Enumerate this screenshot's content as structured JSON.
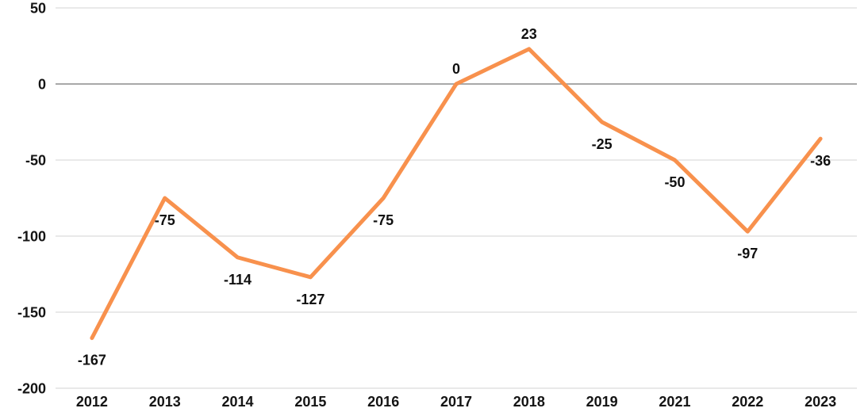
{
  "chart_data": {
    "type": "line",
    "title": "",
    "categories": [
      "2012",
      "2013",
      "2014",
      "2015",
      "2016",
      "2017",
      "2018",
      "2019",
      "2021",
      "2022",
      "2023"
    ],
    "values": [
      -167,
      -75,
      -114,
      -127,
      -75,
      0,
      23,
      -25,
      -50,
      -97,
      -36
    ],
    "point_labels": [
      "-167",
      "-75",
      "-114",
      "-127",
      "-75",
      "0",
      "23",
      "-25",
      "-50",
      "-97",
      "-36"
    ],
    "xlabel": "",
    "ylabel": "",
    "y_ticks": [
      50,
      0,
      -50,
      -100,
      -150,
      -200
    ],
    "y_tick_labels": [
      "50",
      "0",
      "-50",
      "-100",
      "-150",
      "-200"
    ],
    "ylim": [
      -200,
      50
    ],
    "grid": "horizontal-only",
    "legend": "none",
    "colors": {
      "line": "#F8914D",
      "grid": "#E2E2E2",
      "zero_line": "#A8A8A8",
      "text": "#141414",
      "background": "#FFFFFF"
    }
  }
}
